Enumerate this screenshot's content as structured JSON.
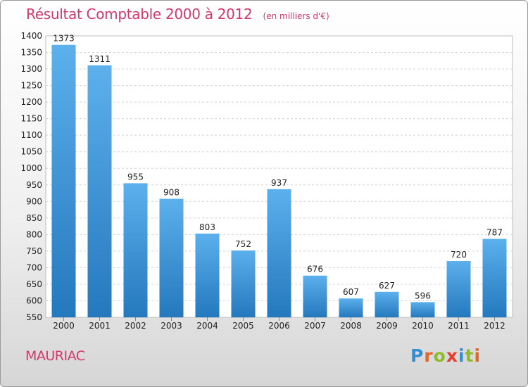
{
  "title": "Résultat Comptable 2000 à 2012",
  "subtitle": "(en milliers d'€)",
  "city": "MAURIAC",
  "brand": {
    "text": "Proxiti",
    "letters": [
      {
        "ch": "P",
        "color": "#2f8fd8"
      },
      {
        "ch": "r",
        "color": "#e0672a"
      },
      {
        "ch": "o",
        "color": "#8dbb2c"
      },
      {
        "ch": "x",
        "color": "#e43f2e"
      },
      {
        "ch": "i",
        "color": "#2f8fd8"
      },
      {
        "ch": "t",
        "color": "#8dbb2c"
      },
      {
        "ch": "i",
        "color": "#e0672a"
      }
    ]
  },
  "colors": {
    "accent": "#d2386e",
    "bar_light": "#5cb0ec",
    "bar_dark": "#2478bd"
  },
  "chart_data": {
    "type": "bar",
    "title": "Résultat Comptable 2000 à 2012",
    "subtitle": "(en milliers d'€)",
    "categories": [
      "2000",
      "2001",
      "2002",
      "2003",
      "2004",
      "2005",
      "2006",
      "2007",
      "2008",
      "2009",
      "2010",
      "2011",
      "2012"
    ],
    "values": [
      1373,
      1311,
      955,
      908,
      803,
      752,
      937,
      676,
      607,
      627,
      596,
      720,
      787
    ],
    "ylim": [
      550,
      1400
    ],
    "ytick_step": 50,
    "grid": true,
    "data_labels": true,
    "xlabel": "",
    "ylabel": ""
  }
}
